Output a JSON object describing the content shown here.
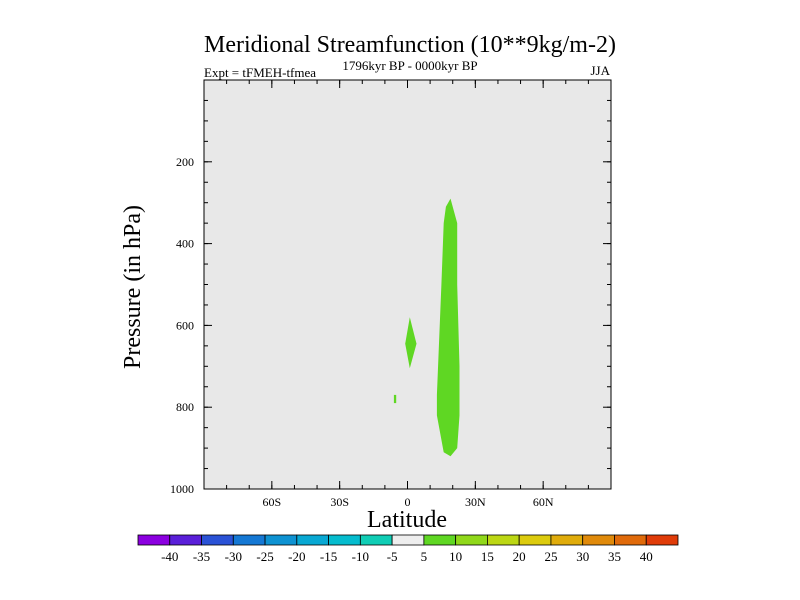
{
  "chart_data": {
    "type": "contour",
    "title": "Meridional Streamfunction (10**9kg/m-2)",
    "subtitle_left": "Expt = tFMEH-tfmea",
    "subtitle_center": "1796kyr BP - 0000kyr BP",
    "subtitle_right": "JJA",
    "xlabel": "Latitude",
    "ylabel": "Pressure (in hPa)",
    "xlim": [
      -90,
      90
    ],
    "ylim": [
      0,
      1000
    ],
    "y_inverted": true,
    "x_ticks": [
      {
        "value": -60,
        "label": "60S"
      },
      {
        "value": -30,
        "label": "30S"
      },
      {
        "value": 0,
        "label": "0"
      },
      {
        "value": 30,
        "label": "30N"
      },
      {
        "value": 60,
        "label": "60N"
      }
    ],
    "y_ticks": [
      {
        "value": 200,
        "label": "200"
      },
      {
        "value": 400,
        "label": "400"
      },
      {
        "value": 600,
        "label": "600"
      },
      {
        "value": 800,
        "label": "800"
      },
      {
        "value": 1000,
        "label": "1000"
      }
    ],
    "background_color": "#e8e8e8",
    "filled_regions": [
      {
        "name": "main-positive-cell",
        "level": "5 to 10",
        "color": "#5fd723",
        "points": [
          [
            19,
            290
          ],
          [
            22,
            350
          ],
          [
            22,
            500
          ],
          [
            23,
            700
          ],
          [
            23,
            820
          ],
          [
            22,
            900
          ],
          [
            19,
            920
          ],
          [
            16,
            910
          ],
          [
            13,
            820
          ],
          [
            13,
            770
          ],
          [
            15,
            500
          ],
          [
            16,
            350
          ],
          [
            17,
            310
          ]
        ]
      },
      {
        "name": "secondary-positive-cell",
        "level": "5 to 10",
        "color": "#5fd723",
        "points": [
          [
            1,
            580
          ],
          [
            4,
            645
          ],
          [
            1,
            705
          ],
          [
            -1,
            645
          ]
        ]
      },
      {
        "name": "tiny-positive-cell",
        "level": "5 to 10",
        "color": "#5fd723",
        "points": [
          [
            -6,
            770
          ],
          [
            -5,
            770
          ],
          [
            -5,
            790
          ],
          [
            -6,
            790
          ]
        ]
      }
    ],
    "colorbar": {
      "levels": [
        "-40",
        "-35",
        "-30",
        "-25",
        "-20",
        "-15",
        "-10",
        "-5",
        "5",
        "10",
        "15",
        "20",
        "25",
        "30",
        "35",
        "40"
      ],
      "colors": [
        "#8b00e0",
        "#5a1fd9",
        "#2a52d6",
        "#1578d4",
        "#0e92d2",
        "#08a8d3",
        "#05bcce",
        "#10cdb5",
        "#eeeeee",
        "#5fd723",
        "#90d81a",
        "#bcd714",
        "#dccb0e",
        "#e0ac0b",
        "#e08a0a",
        "#e06a0a",
        "#e03c09"
      ]
    }
  }
}
